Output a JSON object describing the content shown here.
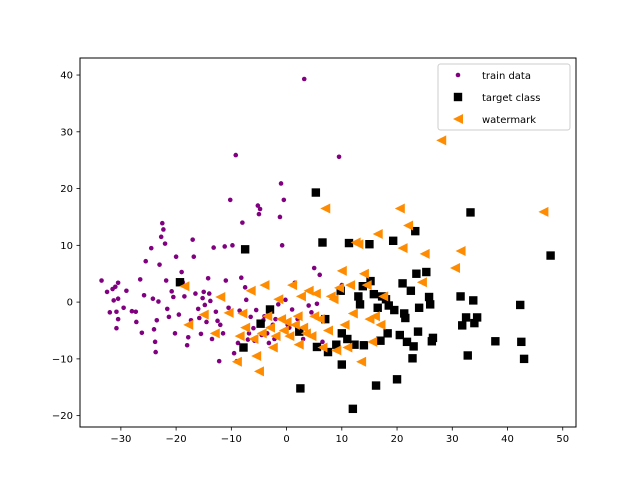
{
  "chart_data": {
    "type": "scatter",
    "title": "",
    "xlabel": "",
    "ylabel": "",
    "xlim": [
      -37.4,
      52.4
    ],
    "ylim": [
      -22,
      43
    ],
    "x_ticks": [
      -30,
      -20,
      -10,
      0,
      10,
      20,
      30,
      40,
      50
    ],
    "y_ticks": [
      -20,
      -10,
      0,
      10,
      20,
      30,
      40
    ],
    "grid": false,
    "legend_position": "top-right",
    "series": [
      {
        "name": "train data",
        "marker": "circle",
        "color": "#800080",
        "points": [
          [
            -33.5,
            3.8
          ],
          [
            -32.5,
            1.8
          ],
          [
            -31.5,
            2.3
          ],
          [
            -31,
            2.7
          ],
          [
            -30.5,
            3.4
          ],
          [
            -31.3,
            0.3
          ],
          [
            -30.5,
            0.6
          ],
          [
            -32.0,
            -1.8
          ],
          [
            -30.8,
            -1.7
          ],
          [
            -30.5,
            -3.0
          ],
          [
            -30.8,
            -4.6
          ],
          [
            -29.5,
            -1.0
          ],
          [
            -29.0,
            2.0
          ],
          [
            -28.0,
            -1.6
          ],
          [
            -27.2,
            -3.5
          ],
          [
            -27.3,
            -1.7
          ],
          [
            -26.5,
            4.0
          ],
          [
            -26.2,
            -5.4
          ],
          [
            -25.8,
            1.2
          ],
          [
            -25.5,
            7.2
          ],
          [
            -24.5,
            9.5
          ],
          [
            -24.2,
            0.6
          ],
          [
            -24.0,
            -4.8
          ],
          [
            -23.8,
            -7.0
          ],
          [
            -23.7,
            -8.8
          ],
          [
            -23.5,
            -3.2
          ],
          [
            -23.2,
            0.1
          ],
          [
            -23.0,
            6.6
          ],
          [
            -22.7,
            11.5
          ],
          [
            -22.5,
            13.9
          ],
          [
            -22.3,
            12.8
          ],
          [
            -22.0,
            10.3
          ],
          [
            -21.8,
            3.8
          ],
          [
            -21.6,
            -1.2
          ],
          [
            -21.3,
            -2.6
          ],
          [
            -20.8,
            1.9
          ],
          [
            -20.5,
            0.9
          ],
          [
            -20.2,
            -5.5
          ],
          [
            -20.0,
            8.0
          ],
          [
            -19.5,
            -2.2
          ],
          [
            -19.0,
            5.3
          ],
          [
            -18.8,
            3.5
          ],
          [
            -18.5,
            1.0
          ],
          [
            -18.0,
            -7.6
          ],
          [
            -17.8,
            -6.2
          ],
          [
            -17.3,
            -3.2
          ],
          [
            -17.0,
            11.0
          ],
          [
            -16.8,
            8.0
          ],
          [
            -16.5,
            1.5
          ],
          [
            -16.0,
            -1.2
          ],
          [
            -15.8,
            -2.8
          ],
          [
            -15.5,
            -5.6
          ],
          [
            -15.2,
            0.7
          ],
          [
            -15.0,
            1.8
          ],
          [
            -14.8,
            -0.5
          ],
          [
            -14.5,
            -3.5
          ],
          [
            -14.2,
            4.2
          ],
          [
            -14.0,
            1.5
          ],
          [
            -13.8,
            0.2
          ],
          [
            -13.5,
            -6.5
          ],
          [
            -13.2,
            9.6
          ],
          [
            -12.8,
            -1.7
          ],
          [
            -12.5,
            -3.3
          ],
          [
            -12.2,
            -10.4
          ],
          [
            -12.0,
            -4.0
          ],
          [
            -11.5,
            -5.5
          ],
          [
            -11.2,
            9.8
          ],
          [
            -11.0,
            3.8
          ],
          [
            -10.5,
            -1.0
          ],
          [
            -10.2,
            18.0
          ],
          [
            -9.8,
            10.0
          ],
          [
            -9.5,
            -9.0
          ],
          [
            -9.2,
            25.9
          ],
          [
            -9.0,
            -10.4
          ],
          [
            -8.8,
            -7.2
          ],
          [
            -8.5,
            -1.5
          ],
          [
            -8.2,
            4.3
          ],
          [
            -8.0,
            14.0
          ],
          [
            -7.8,
            9.3
          ],
          [
            -7.5,
            2.6
          ],
          [
            -7.3,
            0.4
          ],
          [
            -7.0,
            -6.6
          ],
          [
            -6.8,
            -5.5
          ],
          [
            -6.5,
            -2.6
          ],
          [
            -6.0,
            -4.6
          ],
          [
            -5.8,
            -6.8
          ],
          [
            -5.5,
            -1.4
          ],
          [
            -5.2,
            17.0
          ],
          [
            -5.0,
            15.5
          ],
          [
            -4.8,
            16.4
          ],
          [
            -4.5,
            -5.8
          ],
          [
            -4.2,
            -3.2
          ],
          [
            -4.0,
            -2.5
          ],
          [
            -3.5,
            -5.5
          ],
          [
            -3.2,
            -7.2
          ],
          [
            -2.8,
            -1.0
          ],
          [
            -2.5,
            -4.0
          ],
          [
            -2.2,
            -6.5
          ],
          [
            -2.0,
            -3.0
          ],
          [
            -1.5,
            -0.4
          ],
          [
            -1.2,
            15.0
          ],
          [
            -1.0,
            20.9
          ],
          [
            -0.8,
            10.0
          ],
          [
            -0.5,
            18.0
          ],
          [
            -0.2,
            0.4
          ],
          [
            0.2,
            -4.0
          ],
          [
            0.5,
            -4.5
          ],
          [
            1.0,
            -1.3
          ],
          [
            1.5,
            3.4
          ],
          [
            2.0,
            -3.0
          ],
          [
            2.5,
            -5.0
          ],
          [
            3.0,
            -6.5
          ],
          [
            3.2,
            39.3
          ],
          [
            4.0,
            -0.6
          ],
          [
            4.5,
            -1.8
          ],
          [
            5.0,
            6.0
          ],
          [
            5.5,
            -0.3
          ],
          [
            6.0,
            4.8
          ],
          [
            6.5,
            -7.0
          ],
          [
            7.0,
            -8.0
          ],
          [
            9.0,
            -8.5
          ],
          [
            9.5,
            25.6
          ],
          [
            10.0,
            3.0
          ],
          [
            11.0,
            -6.8
          ]
        ]
      },
      {
        "name": "target class",
        "marker": "square",
        "color": "#000000",
        "points": [
          [
            -19.3,
            3.5
          ],
          [
            -7.5,
            9.3
          ],
          [
            -7.8,
            -8.0
          ],
          [
            -4.7,
            -3.8
          ],
          [
            -3.0,
            -1.3
          ],
          [
            2.3,
            -5.2
          ],
          [
            2.5,
            -15.2
          ],
          [
            5.3,
            19.3
          ],
          [
            5.5,
            -7.9
          ],
          [
            6.5,
            10.5
          ],
          [
            7.0,
            -3.0
          ],
          [
            7.5,
            -8.8
          ],
          [
            9.0,
            -7.5
          ],
          [
            9.8,
            2.0
          ],
          [
            10.0,
            -5.5
          ],
          [
            10.0,
            -11.0
          ],
          [
            11.0,
            -6.5
          ],
          [
            11.3,
            10.4
          ],
          [
            12.0,
            -18.8
          ],
          [
            12.3,
            -7.5
          ],
          [
            13.0,
            1.0
          ],
          [
            13.3,
            -0.4
          ],
          [
            13.8,
            2.8
          ],
          [
            14.0,
            -7.6
          ],
          [
            15.0,
            10.2
          ],
          [
            15.2,
            3.7
          ],
          [
            15.8,
            1.4
          ],
          [
            16.2,
            -14.7
          ],
          [
            16.5,
            -1.0
          ],
          [
            17.0,
            -6.8
          ],
          [
            17.3,
            1.0
          ],
          [
            18.0,
            0.5
          ],
          [
            18.3,
            -5.5
          ],
          [
            18.5,
            -0.6
          ],
          [
            19.3,
            10.8
          ],
          [
            19.5,
            -1.4
          ],
          [
            20.0,
            -13.6
          ],
          [
            20.5,
            -5.8
          ],
          [
            21.0,
            3.3
          ],
          [
            21.3,
            -2.0
          ],
          [
            21.5,
            -2.8
          ],
          [
            21.8,
            -7.0
          ],
          [
            22.5,
            2.0
          ],
          [
            22.8,
            -9.9
          ],
          [
            23.0,
            -7.8
          ],
          [
            23.3,
            12.5
          ],
          [
            23.5,
            5.0
          ],
          [
            23.8,
            -5.2
          ],
          [
            24.0,
            -1.0
          ],
          [
            25.3,
            5.3
          ],
          [
            25.8,
            0.9
          ],
          [
            26.0,
            -0.4
          ],
          [
            26.3,
            -6.9
          ],
          [
            26.5,
            -6.3
          ],
          [
            31.5,
            1.0
          ],
          [
            31.8,
            -4.1
          ],
          [
            32.5,
            -2.7
          ],
          [
            32.8,
            -9.4
          ],
          [
            33.3,
            15.8
          ],
          [
            33.8,
            0.3
          ],
          [
            34.0,
            -3.7
          ],
          [
            34.5,
            -2.7
          ],
          [
            37.8,
            -6.9
          ],
          [
            42.3,
            -0.5
          ],
          [
            42.5,
            -7.0
          ],
          [
            43.0,
            -10.0
          ],
          [
            47.8,
            8.2
          ]
        ]
      },
      {
        "name": "watermark",
        "marker": "triangle-left",
        "color": "#ff8c00",
        "points": [
          [
            -18.5,
            2.8
          ],
          [
            -17.8,
            -4.0
          ],
          [
            -15.0,
            -2.2
          ],
          [
            -13.0,
            -5.5
          ],
          [
            -12.0,
            0.9
          ],
          [
            -10.5,
            -1.9
          ],
          [
            -9.0,
            -10.5
          ],
          [
            -8.5,
            -6.0
          ],
          [
            -8.0,
            -2.0
          ],
          [
            -7.5,
            -4.5
          ],
          [
            -6.5,
            2.0
          ],
          [
            -6.0,
            -6.5
          ],
          [
            -5.5,
            -9.5
          ],
          [
            -5.0,
            -12.2
          ],
          [
            -4.5,
            -5.5
          ],
          [
            -4.0,
            3.0
          ],
          [
            -3.5,
            -2.5
          ],
          [
            -3.0,
            -4.5
          ],
          [
            -2.5,
            -8.0
          ],
          [
            -2.0,
            -6.0
          ],
          [
            -1.5,
            0.5
          ],
          [
            -1.0,
            -3.0
          ],
          [
            -0.5,
            -5.0
          ],
          [
            0.0,
            -3.5
          ],
          [
            0.5,
            -6.0
          ],
          [
            1.0,
            3.0
          ],
          [
            1.5,
            -4.0
          ],
          [
            2.0,
            -2.5
          ],
          [
            2.2,
            -7.5
          ],
          [
            2.6,
            1.0
          ],
          [
            3.0,
            -4.5
          ],
          [
            3.5,
            -5.5
          ],
          [
            4.0,
            2.0
          ],
          [
            4.5,
            -6.0
          ],
          [
            5.0,
            -2.5
          ],
          [
            5.3,
            1.5
          ],
          [
            6.0,
            -3.0
          ],
          [
            6.5,
            -8.0
          ],
          [
            7.0,
            16.5
          ],
          [
            7.5,
            -5.0
          ],
          [
            8.0,
            1.0
          ],
          [
            8.5,
            0.5
          ],
          [
            9.0,
            -8.5
          ],
          [
            9.5,
            2.5
          ],
          [
            10.0,
            5.5
          ],
          [
            10.5,
            -4.0
          ],
          [
            11.0,
            -8.0
          ],
          [
            11.5,
            3.0
          ],
          [
            12.0,
            -2.0
          ],
          [
            12.5,
            10.5
          ],
          [
            13.0,
            10.2
          ],
          [
            13.5,
            -10.5
          ],
          [
            14.0,
            5.0
          ],
          [
            14.5,
            3.0
          ],
          [
            15.0,
            -3.0
          ],
          [
            15.5,
            -7.0
          ],
          [
            16.0,
            -2.5
          ],
          [
            16.5,
            12.0
          ],
          [
            17.0,
            -4.0
          ],
          [
            17.5,
            1.0
          ],
          [
            20.5,
            16.5
          ],
          [
            21.0,
            9.5
          ],
          [
            22.0,
            13.5
          ],
          [
            24.5,
            3.5
          ],
          [
            25.0,
            8.5
          ],
          [
            28.0,
            28.5
          ],
          [
            30.5,
            6.0
          ],
          [
            31.5,
            9.0
          ],
          [
            46.5,
            15.9
          ]
        ]
      }
    ]
  }
}
